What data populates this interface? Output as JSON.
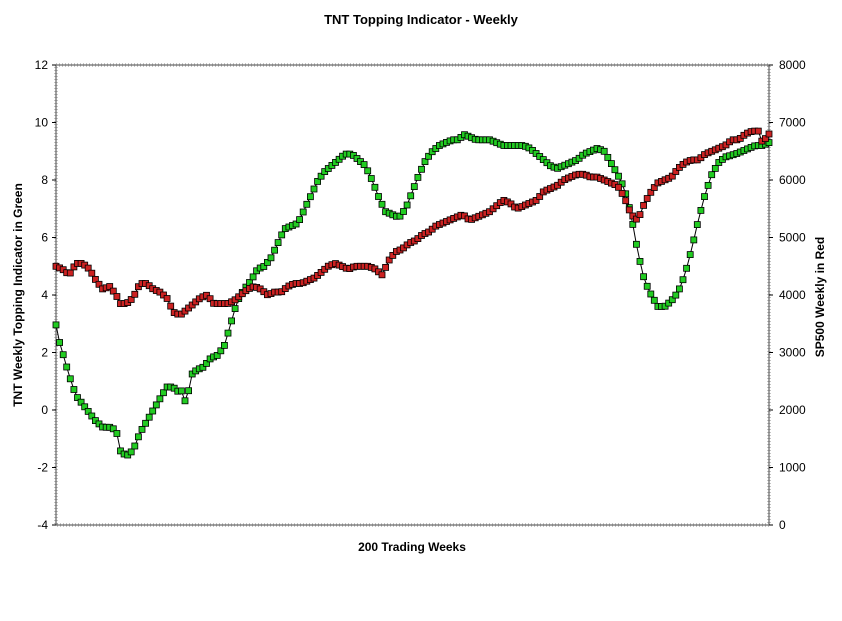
{
  "chart_data": {
    "type": "line",
    "title": "TNT Topping Indicator - Weekly",
    "xlabel": "200 Trading Weeks",
    "ylabel_left": "TNT Weekly Topping Indicator in Green",
    "ylabel_right": "SP500 Weekly in Red",
    "y_left_range": [
      -4,
      12
    ],
    "y_right_range": [
      0,
      8000
    ],
    "y_left_ticks": [
      "12",
      "10",
      "8",
      "6",
      "4",
      "2",
      "0",
      "-2",
      "-4"
    ],
    "y_right_ticks": [
      "8000",
      "7000",
      "6000",
      "5000",
      "4000",
      "3000",
      "2000",
      "1000",
      "0"
    ],
    "x_count": 200,
    "grid": false,
    "series": [
      {
        "color": "#22cc22",
        "axis": "left",
        "anchors": [
          [
            1,
            3.0
          ],
          [
            2,
            2.4
          ],
          [
            3,
            2.0
          ],
          [
            5,
            1.2
          ],
          [
            7,
            0.5
          ],
          [
            9,
            0.2
          ],
          [
            11,
            -0.1
          ],
          [
            13,
            -0.4
          ],
          [
            15,
            -0.6
          ],
          [
            17,
            -0.6
          ],
          [
            19,
            -0.7
          ],
          [
            20,
            -1.4
          ],
          [
            22,
            -1.6
          ],
          [
            24,
            -1.4
          ],
          [
            26,
            -0.8
          ],
          [
            28,
            -0.4
          ],
          [
            30,
            0.0
          ],
          [
            32,
            0.4
          ],
          [
            34,
            0.8
          ],
          [
            36,
            0.8
          ],
          [
            37,
            0.6
          ],
          [
            38,
            0.8
          ],
          [
            39,
            0.4
          ],
          [
            40,
            0.2
          ],
          [
            41,
            1.2
          ],
          [
            43,
            1.4
          ],
          [
            45,
            1.5
          ],
          [
            47,
            1.8
          ],
          [
            49,
            1.9
          ],
          [
            51,
            2.2
          ],
          [
            53,
            3.0
          ],
          [
            55,
            3.8
          ],
          [
            57,
            4.2
          ],
          [
            59,
            4.5
          ],
          [
            61,
            4.9
          ],
          [
            63,
            5.0
          ],
          [
            65,
            5.3
          ],
          [
            67,
            5.8
          ],
          [
            69,
            6.3
          ],
          [
            71,
            6.4
          ],
          [
            73,
            6.5
          ],
          [
            75,
            7.0
          ],
          [
            77,
            7.5
          ],
          [
            79,
            8.0
          ],
          [
            81,
            8.3
          ],
          [
            83,
            8.5
          ],
          [
            85,
            8.7
          ],
          [
            87,
            8.9
          ],
          [
            89,
            8.9
          ],
          [
            91,
            8.7
          ],
          [
            93,
            8.5
          ],
          [
            95,
            8.0
          ],
          [
            97,
            7.4
          ],
          [
            99,
            6.9
          ],
          [
            101,
            6.8
          ],
          [
            103,
            6.7
          ],
          [
            105,
            7.0
          ],
          [
            107,
            7.6
          ],
          [
            109,
            8.2
          ],
          [
            111,
            8.7
          ],
          [
            113,
            9.0
          ],
          [
            115,
            9.2
          ],
          [
            117,
            9.3
          ],
          [
            119,
            9.4
          ],
          [
            121,
            9.4
          ],
          [
            122,
            9.6
          ],
          [
            124,
            9.5
          ],
          [
            126,
            9.4
          ],
          [
            128,
            9.4
          ],
          [
            130,
            9.4
          ],
          [
            132,
            9.3
          ],
          [
            134,
            9.2
          ],
          [
            137,
            9.2
          ],
          [
            140,
            9.2
          ],
          [
            142,
            9.1
          ],
          [
            144,
            8.9
          ],
          [
            146,
            8.7
          ],
          [
            148,
            8.5
          ],
          [
            150,
            8.4
          ],
          [
            152,
            8.5
          ],
          [
            154,
            8.6
          ],
          [
            156,
            8.7
          ],
          [
            158,
            8.9
          ],
          [
            160,
            9.0
          ],
          [
            162,
            9.1
          ],
          [
            164,
            9.0
          ],
          [
            166,
            8.6
          ],
          [
            168,
            8.2
          ],
          [
            170,
            7.7
          ],
          [
            172,
            6.8
          ],
          [
            174,
            5.5
          ],
          [
            176,
            4.5
          ],
          [
            178,
            4.0
          ],
          [
            180,
            3.6
          ],
          [
            182,
            3.6
          ],
          [
            184,
            3.8
          ],
          [
            186,
            4.1
          ],
          [
            188,
            4.7
          ],
          [
            190,
            5.6
          ],
          [
            192,
            6.6
          ],
          [
            194,
            7.5
          ],
          [
            196,
            8.2
          ],
          [
            198,
            8.6
          ],
          [
            200,
            8.8
          ],
          [
            203,
            8.9
          ],
          [
            205,
            9.0
          ],
          [
            207,
            9.1
          ],
          [
            209,
            9.2
          ],
          [
            211,
            9.2
          ],
          [
            213,
            9.3
          ]
        ]
      },
      {
        "color": "#cc2222",
        "axis": "right",
        "anchors": [
          [
            1,
            4500
          ],
          [
            3,
            4450
          ],
          [
            5,
            4350
          ],
          [
            7,
            4550
          ],
          [
            9,
            4550
          ],
          [
            11,
            4450
          ],
          [
            13,
            4250
          ],
          [
            15,
            4100
          ],
          [
            17,
            4150
          ],
          [
            19,
            4000
          ],
          [
            20,
            3850
          ],
          [
            22,
            3850
          ],
          [
            24,
            3950
          ],
          [
            26,
            4200
          ],
          [
            28,
            4200
          ],
          [
            30,
            4100
          ],
          [
            32,
            4050
          ],
          [
            34,
            3950
          ],
          [
            36,
            3700
          ],
          [
            38,
            3650
          ],
          [
            40,
            3750
          ],
          [
            42,
            3850
          ],
          [
            44,
            3950
          ],
          [
            46,
            4000
          ],
          [
            48,
            3850
          ],
          [
            50,
            3850
          ],
          [
            52,
            3850
          ],
          [
            54,
            3900
          ],
          [
            56,
            4000
          ],
          [
            58,
            4100
          ],
          [
            60,
            4150
          ],
          [
            62,
            4100
          ],
          [
            64,
            4000
          ],
          [
            66,
            4050
          ],
          [
            68,
            4050
          ],
          [
            70,
            4150
          ],
          [
            72,
            4200
          ],
          [
            74,
            4200
          ],
          [
            76,
            4250
          ],
          [
            78,
            4300
          ],
          [
            80,
            4400
          ],
          [
            82,
            4500
          ],
          [
            84,
            4550
          ],
          [
            86,
            4500
          ],
          [
            88,
            4450
          ],
          [
            90,
            4500
          ],
          [
            92,
            4500
          ],
          [
            94,
            4500
          ],
          [
            96,
            4450
          ],
          [
            98,
            4350
          ],
          [
            100,
            4600
          ],
          [
            102,
            4750
          ],
          [
            104,
            4800
          ],
          [
            106,
            4900
          ],
          [
            108,
            4950
          ],
          [
            110,
            5050
          ],
          [
            112,
            5100
          ],
          [
            114,
            5200
          ],
          [
            116,
            5250
          ],
          [
            118,
            5300
          ],
          [
            120,
            5350
          ],
          [
            122,
            5400
          ],
          [
            124,
            5300
          ],
          [
            126,
            5350
          ],
          [
            128,
            5400
          ],
          [
            130,
            5450
          ],
          [
            132,
            5550
          ],
          [
            134,
            5650
          ],
          [
            136,
            5600
          ],
          [
            138,
            5500
          ],
          [
            140,
            5550
          ],
          [
            142,
            5600
          ],
          [
            144,
            5650
          ],
          [
            146,
            5800
          ],
          [
            148,
            5850
          ],
          [
            150,
            5900
          ],
          [
            152,
            6000
          ],
          [
            154,
            6050
          ],
          [
            156,
            6100
          ],
          [
            158,
            6100
          ],
          [
            160,
            6050
          ],
          [
            162,
            6050
          ],
          [
            164,
            6000
          ],
          [
            166,
            5950
          ],
          [
            168,
            5900
          ],
          [
            170,
            5700
          ],
          [
            172,
            5400
          ],
          [
            174,
            5300
          ],
          [
            176,
            5600
          ],
          [
            178,
            5800
          ],
          [
            180,
            5950
          ],
          [
            182,
            6000
          ],
          [
            184,
            6050
          ],
          [
            186,
            6200
          ],
          [
            188,
            6300
          ],
          [
            190,
            6350
          ],
          [
            192,
            6350
          ],
          [
            194,
            6450
          ],
          [
            196,
            6500
          ],
          [
            198,
            6550
          ],
          [
            200,
            6600
          ],
          [
            202,
            6700
          ],
          [
            204,
            6700
          ],
          [
            206,
            6800
          ],
          [
            208,
            6850
          ],
          [
            210,
            6850
          ],
          [
            211,
            6650
          ],
          [
            213,
            6800
          ]
        ]
      }
    ]
  }
}
